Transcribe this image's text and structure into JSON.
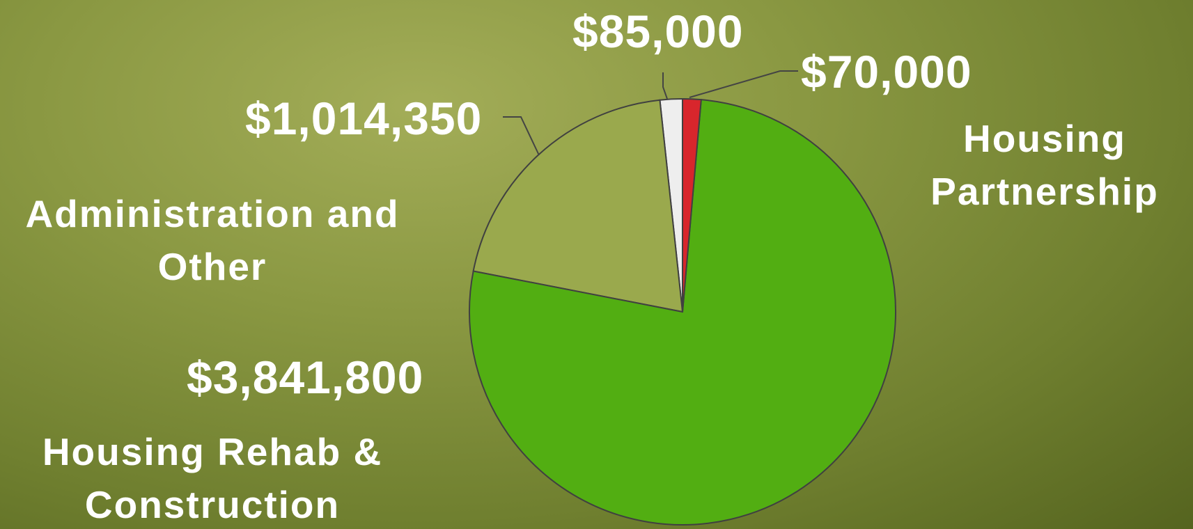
{
  "chart_data": {
    "type": "pie",
    "categories": [
      "Housing Partnership",
      "Housing Rehab & Construction",
      "Administration and Other",
      null
    ],
    "values": [
      70000,
      3841800,
      1014350,
      85000
    ],
    "value_labels": [
      "$70,000",
      "$3,841,800",
      "$1,014,350",
      "$85,000"
    ],
    "colors": [
      "#d8262c",
      "#52ae12",
      "#9aa94d",
      "#eeeeee"
    ],
    "start_angle": 0,
    "direction": "clockwise"
  }
}
